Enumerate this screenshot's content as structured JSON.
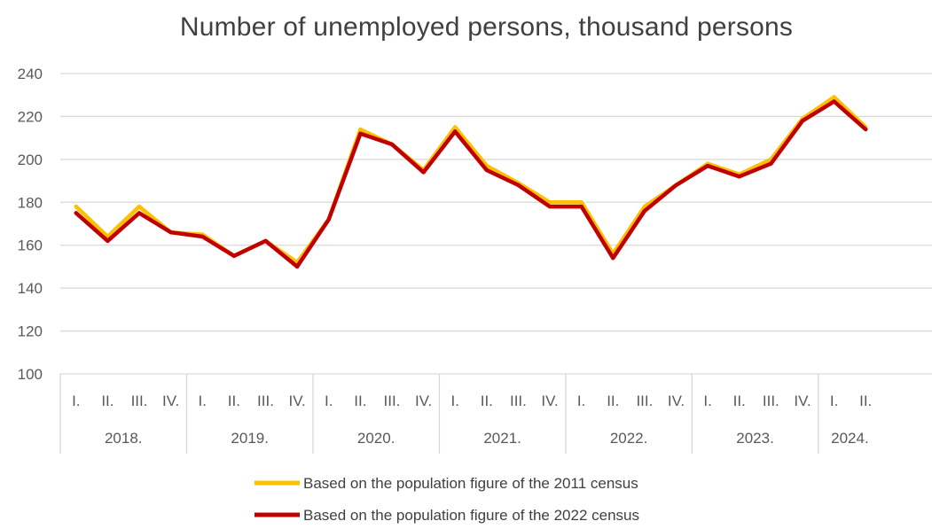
{
  "chart_data": {
    "type": "line",
    "title": "Number of unemployed persons, thousand persons",
    "xlabel": "",
    "ylabel": "",
    "ylim": [
      100,
      240
    ],
    "yticks": [
      100,
      120,
      140,
      160,
      180,
      200,
      220,
      240
    ],
    "quarters": [
      "I.",
      "II.",
      "III.",
      "IV.",
      "I.",
      "II.",
      "III.",
      "IV.",
      "I.",
      "II.",
      "III.",
      "IV.",
      "I.",
      "II.",
      "III.",
      "IV.",
      "I.",
      "II.",
      "III.",
      "IV.",
      "I.",
      "II.",
      "III.",
      "IV.",
      "I.",
      "II."
    ],
    "years": [
      {
        "label": "2018.",
        "count": 4
      },
      {
        "label": "2019.",
        "count": 4
      },
      {
        "label": "2020.",
        "count": 4
      },
      {
        "label": "2021.",
        "count": 4
      },
      {
        "label": "2022.",
        "count": 4
      },
      {
        "label": "2023.",
        "count": 4
      },
      {
        "label": "2024.",
        "count": 2
      }
    ],
    "grid": true,
    "legend_position": "bottom",
    "series": [
      {
        "name": "Based on the population figure of the 2011 census",
        "color": "#FFC000",
        "values": [
          178,
          164,
          178,
          166,
          165,
          155,
          162,
          152,
          172,
          214,
          207,
          195,
          215,
          197,
          189,
          180,
          180,
          156,
          178,
          188,
          198,
          193,
          200,
          219,
          229,
          215
        ]
      },
      {
        "name": "Based on the population figure of the 2022 census",
        "color": "#C00000",
        "values": [
          175,
          162,
          175,
          166,
          164,
          155,
          162,
          150,
          172,
          212,
          207,
          194,
          213,
          195,
          188,
          178,
          178,
          154,
          176,
          188,
          197,
          192,
          198,
          218,
          227,
          214
        ]
      }
    ]
  }
}
